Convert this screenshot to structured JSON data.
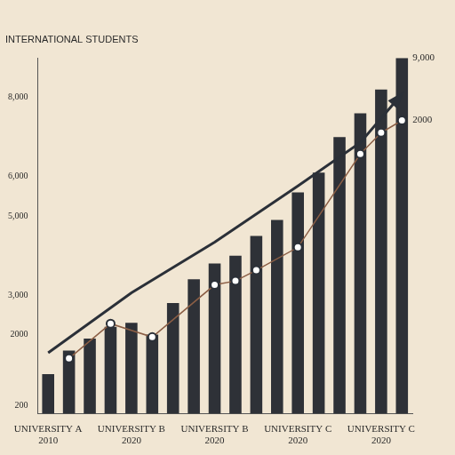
{
  "chart_data": {
    "type": "bar",
    "title": "INTERNATIONAL STUDENTS",
    "categories": [
      "UNIVERSITY A\n2010",
      null,
      null,
      null,
      "UNIVERSITY B\n2020",
      null,
      null,
      null,
      "UNIVERSITY B\n2020",
      null,
      null,
      null,
      "UNIVERSITY C\n2020",
      null,
      null,
      null,
      "UNIVERSITY C\n2020",
      null
    ],
    "series": [
      {
        "type": "bar",
        "color": "#2e3137",
        "values": [
          1000,
          1600,
          1900,
          2200,
          2300,
          2000,
          2800,
          3400,
          3800,
          4000,
          4500,
          4900,
          5600,
          6100,
          7000,
          7600,
          8200,
          9000
        ]
      },
      {
        "type": "line",
        "color": "#2b3038",
        "marker": "arrow",
        "line_style": "solid",
        "values": [
          1540,
          null,
          null,
          null,
          3060,
          null,
          null,
          null,
          4340,
          null,
          null,
          null,
          5760,
          null,
          null,
          6860,
          null,
          8090
        ]
      },
      {
        "type": "line",
        "color": "#8b5e45",
        "marker": "circle",
        "line_style": "solid",
        "values": [
          null,
          1400,
          null,
          2280,
          null,
          1940,
          null,
          null,
          3260,
          3360,
          3630,
          null,
          4210,
          null,
          null,
          6570,
          7110,
          7420
        ]
      }
    ],
    "ylim": [
      0,
      9000
    ],
    "yticks": [
      200,
      2000,
      {
        "value": 3000,
        "label": "3,000"
      },
      {
        "value": 5000,
        "label": "5,000"
      },
      {
        "value": 6000,
        "label": "6,000"
      },
      {
        "value": 8000,
        "label": "8,000"
      }
    ],
    "grid": false,
    "annotations": [
      {
        "text": "9,000",
        "x": 17,
        "y": 9000
      },
      {
        "text": "2000",
        "x": 17,
        "y": 7420
      }
    ]
  }
}
